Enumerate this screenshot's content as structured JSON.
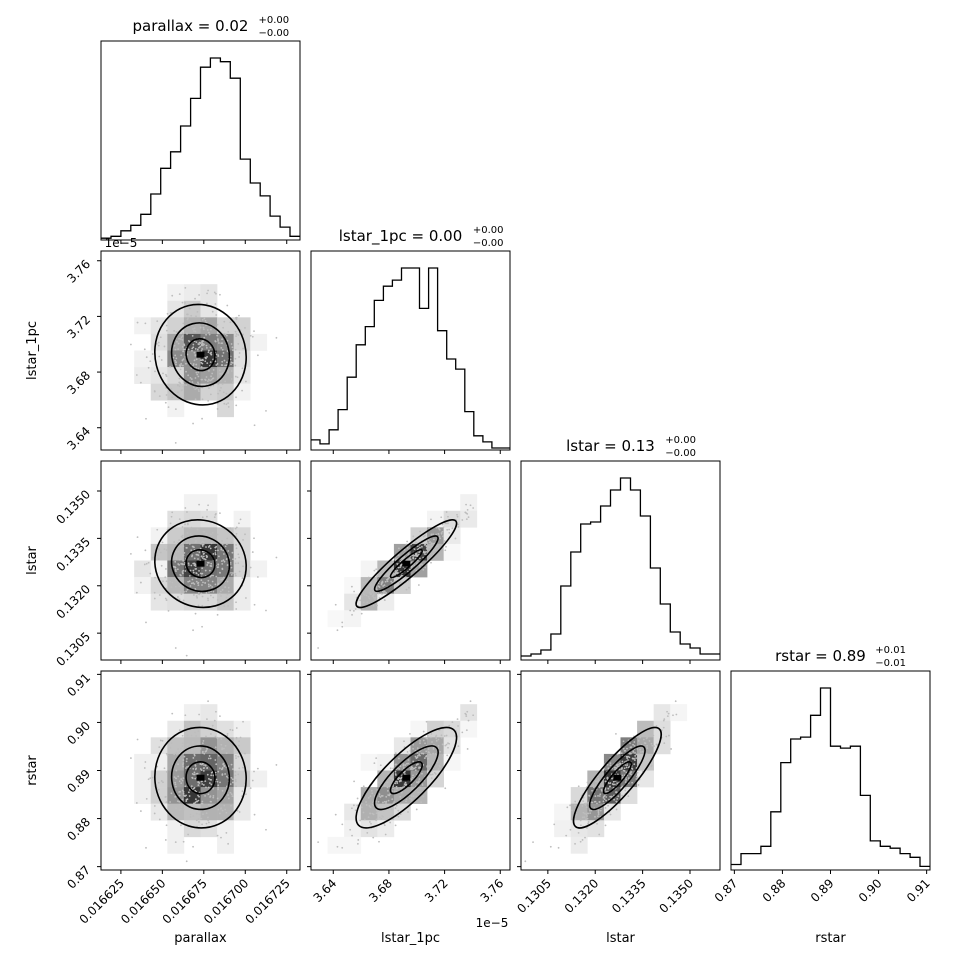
{
  "chart_data": {
    "type": "corner",
    "parameters": [
      "parallax",
      "lstar_1pc",
      "lstar",
      "rstar"
    ],
    "panel_titles": [
      {
        "label": "parallax = 0.02",
        "sup": "+0.00",
        "sub": "−0.00"
      },
      {
        "label": "lstar_1pc = 0.00",
        "sup": "+0.00",
        "sub": "−0.00"
      },
      {
        "label": "lstar = 0.13",
        "sup": "+0.00",
        "sub": "−0.00"
      },
      {
        "label": "rstar = 0.89",
        "sup": "+0.01",
        "sub": "−0.01"
      }
    ],
    "axis_labels": [
      "parallax",
      "lstar_1pc",
      "lstar",
      "rstar"
    ],
    "ranges": [
      [
        0.016613,
        0.016733
      ],
      [
        3.624e-05,
        3.767e-05
      ],
      [
        0.12965,
        0.13595
      ],
      [
        0.8693,
        0.9107
      ]
    ],
    "ticks": [
      [
        0.016625,
        0.01665,
        0.016675,
        0.0167,
        0.016725
      ],
      [
        3.64e-05,
        3.68e-05,
        3.72e-05,
        3.76e-05
      ],
      [
        0.1305,
        0.132,
        0.1335,
        0.135
      ],
      [
        0.87,
        0.88,
        0.89,
        0.9,
        0.91
      ]
    ],
    "tick_labels": [
      [
        "0.016625",
        "0.016650",
        "0.016675",
        "0.016700",
        "0.016725"
      ],
      [
        "3.64",
        "3.68",
        "3.72",
        "3.76"
      ],
      [
        "0.1305",
        "0.1320",
        "0.1335",
        "0.1350"
      ],
      [
        "0.87",
        "0.88",
        "0.89",
        "0.90",
        "0.91"
      ]
    ],
    "offset_label": "1e−5",
    "histograms": [
      [
        1,
        2,
        5,
        8,
        14,
        25,
        39,
        48,
        62,
        77,
        94,
        99,
        97,
        88,
        44,
        31,
        24,
        13,
        7,
        2
      ],
      [
        5,
        3,
        10,
        20,
        36,
        52,
        61,
        74,
        81,
        84,
        90,
        90,
        70,
        90,
        59,
        45,
        40,
        19,
        7,
        4,
        1,
        1
      ],
      [
        2,
        3,
        5,
        13,
        37,
        54,
        68,
        69,
        77,
        85,
        91,
        85,
        72,
        46,
        28,
        14,
        8,
        6,
        3,
        3
      ],
      [
        3,
        9,
        9,
        13,
        32,
        59,
        72,
        73,
        85,
        100,
        68,
        67,
        68,
        41,
        16,
        13,
        12,
        9,
        7,
        2
      ]
    ],
    "scatter_params": {
      "means": [
        0.016673,
        3.6925e-05,
        0.1327,
        0.8885
      ],
      "sigmas": [
        1.45e-05,
        1.9e-07,
        0.00073,
        0.0055
      ],
      "correlations": [
        [
          1,
          -0.05,
          -0.06,
          -0.02
        ],
        [
          -0.05,
          1,
          0.92,
          0.8
        ],
        [
          -0.06,
          0.92,
          1,
          0.86
        ],
        [
          -0.02,
          0.8,
          0.86,
          1
        ]
      ]
    }
  }
}
